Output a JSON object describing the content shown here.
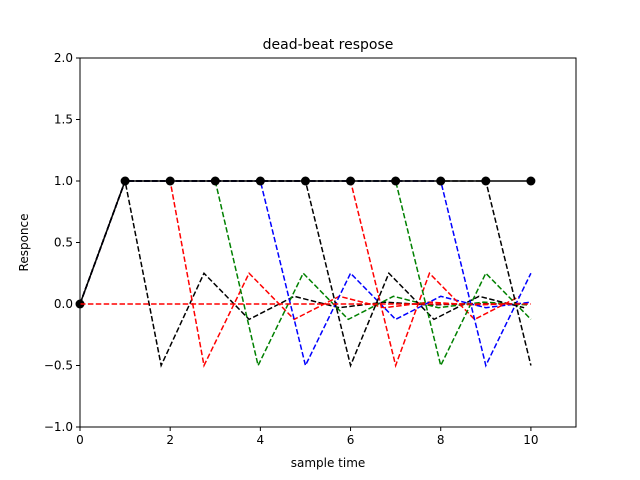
{
  "chart_data": {
    "type": "line",
    "title": "dead-beat respose",
    "xlabel": "sample time",
    "ylabel": "Responce",
    "xlim": [
      0,
      11
    ],
    "ylim": [
      -1.0,
      2.0
    ],
    "xticks": [
      0,
      2,
      4,
      6,
      8,
      10
    ],
    "xtick_labels": [
      "0",
      "2",
      "4",
      "6",
      "8",
      "10"
    ],
    "yticks": [
      -1.0,
      -0.5,
      0.0,
      0.5,
      1.0,
      1.5,
      2.0
    ],
    "ytick_labels": [
      "−1.0",
      "−0.5",
      "0.0",
      "0.5",
      "1.0",
      "1.5",
      "2.0"
    ],
    "grid": false,
    "series": [
      {
        "color": "#000000",
        "style": "dashed",
        "marker": "none",
        "x": [
          0,
          1,
          1.8,
          2.75,
          3.75,
          4.75,
          5.75,
          6.75,
          7.75,
          8.75,
          9.75
        ],
        "y": [
          0,
          1,
          -0.5,
          0.25,
          -0.125,
          0.0625,
          -0.03,
          0.015,
          -0.008,
          0.004,
          -0.002
        ]
      },
      {
        "color": "#ff0000",
        "style": "dashed",
        "marker": "none",
        "x": [
          0,
          1,
          2,
          2.75,
          3.75,
          4.75,
          5.75,
          6.75,
          7.75,
          8.75,
          9.75
        ],
        "y": [
          0,
          1,
          1,
          -0.5,
          0.25,
          -0.125,
          0.0625,
          -0.03,
          0.015,
          -0.008,
          0.004
        ]
      },
      {
        "color": "#008000",
        "style": "dashed",
        "marker": "none",
        "x": [
          0,
          1,
          2,
          3,
          3.95,
          4.95,
          5.95,
          6.95,
          7.95,
          8.95,
          9.95
        ],
        "y": [
          0,
          1,
          1,
          1,
          -0.5,
          0.25,
          -0.125,
          0.0625,
          -0.03,
          0.015,
          -0.008
        ]
      },
      {
        "color": "#0000ff",
        "style": "dashed",
        "marker": "none",
        "x": [
          0,
          1,
          2,
          3,
          4,
          5,
          6,
          7,
          8,
          9,
          10
        ],
        "y": [
          0,
          1,
          1,
          1,
          1,
          -0.5,
          0.25,
          -0.125,
          0.0625,
          -0.03,
          0.015
        ]
      },
      {
        "color": "#000000",
        "style": "dashed",
        "marker": "none",
        "x": [
          0,
          1,
          2,
          3,
          4,
          5,
          6,
          6.85,
          7.85,
          8.85,
          9.85
        ],
        "y": [
          0,
          1,
          1,
          1,
          1,
          1,
          -0.5,
          0.25,
          -0.125,
          0.0625,
          -0.03
        ]
      },
      {
        "color": "#ff0000",
        "style": "dashed",
        "marker": "none",
        "x": [
          0,
          1,
          2,
          3,
          4,
          5,
          6,
          7,
          7.75,
          8.75,
          9.75
        ],
        "y": [
          0,
          1,
          1,
          1,
          1,
          1,
          1,
          -0.5,
          0.25,
          -0.125,
          0.0625
        ]
      },
      {
        "color": "#008000",
        "style": "dashed",
        "marker": "none",
        "x": [
          0,
          1,
          2,
          3,
          4,
          5,
          6,
          7,
          8,
          9,
          10
        ],
        "y": [
          0,
          1,
          1,
          1,
          1,
          1,
          1,
          1,
          -0.5,
          0.25,
          -0.125
        ]
      },
      {
        "color": "#0000ff",
        "style": "dashed",
        "marker": "none",
        "x": [
          0,
          1,
          2,
          3,
          4,
          5,
          6,
          7,
          8,
          9,
          10
        ],
        "y": [
          0,
          1,
          1,
          1,
          1,
          1,
          1,
          1,
          1,
          -0.5,
          0.25
        ]
      },
      {
        "color": "#000000",
        "style": "dashed",
        "marker": "none",
        "x": [
          0,
          1,
          2,
          3,
          4,
          5,
          6,
          7,
          8,
          9,
          10
        ],
        "y": [
          0,
          1,
          1,
          1,
          1,
          1,
          1,
          1,
          1,
          1,
          -0.5
        ]
      },
      {
        "color": "#000000",
        "style": "solid",
        "marker": "circle",
        "x": [
          0,
          1,
          2,
          3,
          4,
          5,
          6,
          7,
          8,
          9,
          10
        ],
        "y": [
          0,
          1,
          1,
          1,
          1,
          1,
          1,
          1,
          1,
          1,
          1
        ]
      },
      {
        "color": "#ff0000",
        "style": "dashed",
        "marker": "none",
        "x": [
          0,
          10
        ],
        "y": [
          0,
          0
        ]
      }
    ]
  }
}
